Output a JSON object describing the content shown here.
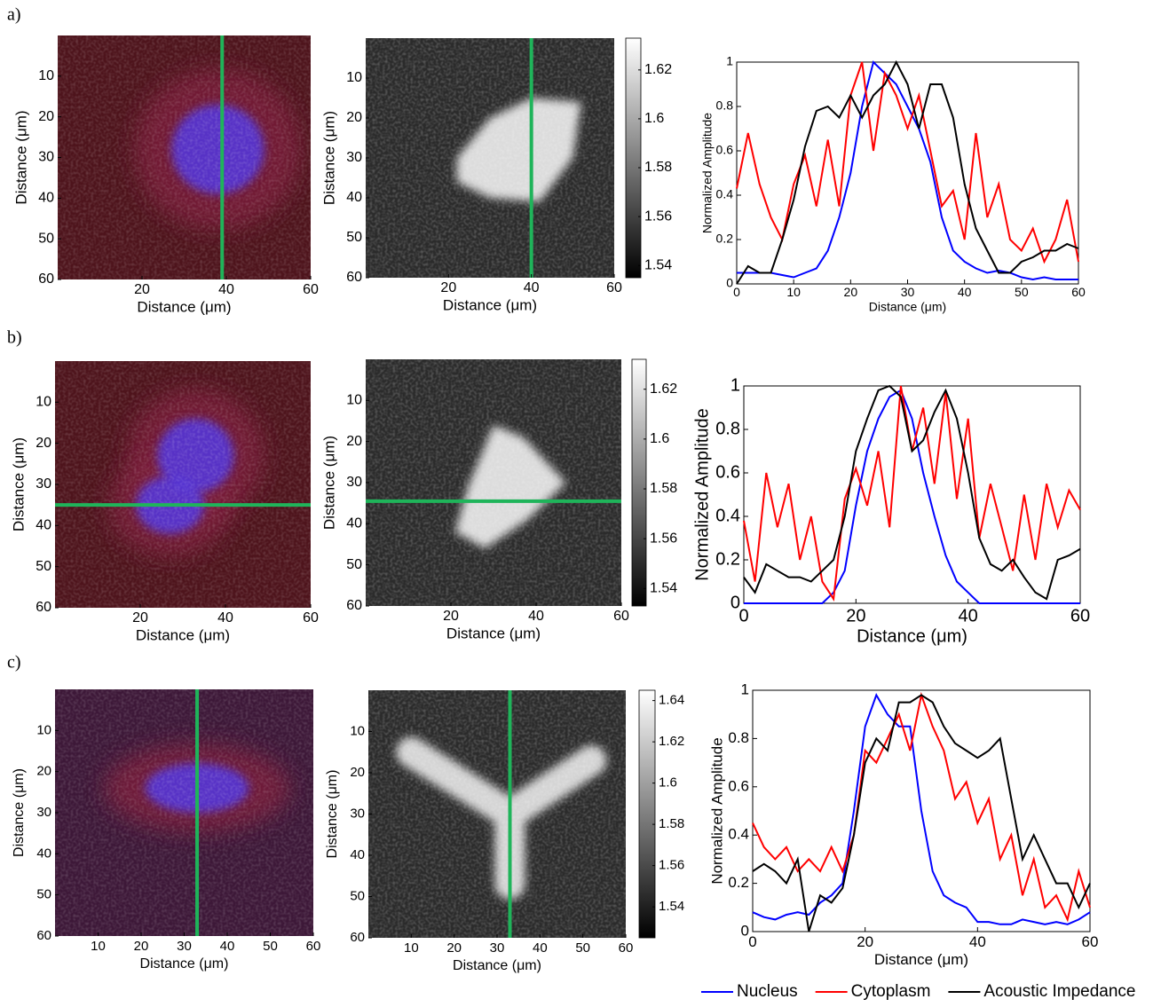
{
  "panel_labels": [
    "a)",
    "b)",
    "c)"
  ],
  "chart_data": [
    {
      "type": "image",
      "colormap": "fluorescence",
      "xlabel": "Distance (μm)",
      "ylabel": "Distance (μm)",
      "xlim": [
        0,
        60
      ],
      "ylim": [
        0,
        60
      ],
      "xticks": [
        20,
        40,
        60
      ],
      "yticks": [
        10,
        20,
        30,
        40,
        50,
        60
      ],
      "cut": {
        "orientation": "vertical",
        "value": 39,
        "color": "#1fb45a"
      }
    },
    {
      "type": "image",
      "colormap": "gray",
      "xlabel": "Distance (μm)",
      "ylabel": "Distance (μm)",
      "xlim": [
        0,
        60
      ],
      "ylim": [
        0,
        60
      ],
      "xticks": [
        20,
        40,
        60
      ],
      "yticks": [
        10,
        20,
        30,
        40,
        50,
        60
      ],
      "cut": {
        "orientation": "vertical",
        "value": 40,
        "color": "#1fb45a"
      },
      "clim": [
        1.535,
        1.633
      ],
      "cticks": [
        1.54,
        1.56,
        1.58,
        1.6,
        1.62
      ]
    },
    {
      "type": "line",
      "xlabel": "Distance (μm)",
      "ylabel": "Normalized Amplitude",
      "xlim": [
        0,
        60
      ],
      "ylim": [
        0,
        1
      ],
      "xticks": [
        0,
        10,
        20,
        30,
        40,
        50,
        60
      ],
      "yticks": [
        0,
        0.2,
        0.4,
        0.6,
        0.8,
        1
      ],
      "x": [
        0,
        2,
        4,
        6,
        8,
        10,
        12,
        14,
        16,
        18,
        20,
        22,
        24,
        26,
        28,
        30,
        32,
        34,
        36,
        38,
        40,
        42,
        44,
        46,
        48,
        50,
        52,
        54,
        56,
        58,
        60
      ],
      "series": [
        {
          "name": "Nucleus",
          "color": "#0000ff",
          "values": [
            0.05,
            0.05,
            0.05,
            0.05,
            0.04,
            0.03,
            0.05,
            0.07,
            0.15,
            0.3,
            0.5,
            0.8,
            1.0,
            0.95,
            0.9,
            0.8,
            0.7,
            0.55,
            0.3,
            0.15,
            0.1,
            0.07,
            0.05,
            0.06,
            0.05,
            0.03,
            0.02,
            0.03,
            0.02,
            0.02,
            0.02
          ]
        },
        {
          "name": "Cytoplasm",
          "color": "#ff0000",
          "values": [
            0.43,
            0.68,
            0.45,
            0.3,
            0.2,
            0.45,
            0.58,
            0.35,
            0.65,
            0.35,
            0.85,
            1.0,
            0.6,
            0.95,
            0.85,
            0.7,
            0.85,
            0.6,
            0.35,
            0.42,
            0.2,
            0.68,
            0.3,
            0.45,
            0.2,
            0.15,
            0.25,
            0.1,
            0.2,
            0.38,
            0.1
          ]
        },
        {
          "name": "Acoustic Impedance",
          "color": "#000000",
          "values": [
            0.0,
            0.08,
            0.05,
            0.05,
            0.2,
            0.38,
            0.62,
            0.78,
            0.8,
            0.75,
            0.85,
            0.75,
            0.85,
            0.9,
            1.0,
            0.9,
            0.7,
            0.9,
            0.9,
            0.75,
            0.45,
            0.25,
            0.15,
            0.05,
            0.05,
            0.1,
            0.12,
            0.15,
            0.15,
            0.18,
            0.16
          ]
        }
      ]
    },
    {
      "type": "image",
      "colormap": "fluorescence",
      "xlabel": "Distance (μm)",
      "ylabel": "Distance (μm)",
      "xlim": [
        0,
        60
      ],
      "ylim": [
        0,
        60
      ],
      "xticks": [
        20,
        40,
        60
      ],
      "yticks": [
        10,
        20,
        30,
        40,
        50,
        60
      ],
      "cut": {
        "orientation": "horizontal",
        "value": 35,
        "color": "#1fb45a"
      }
    },
    {
      "type": "image",
      "colormap": "gray",
      "xlabel": "Distance (μm)",
      "ylabel": "Distance (μm)",
      "xlim": [
        0,
        60
      ],
      "ylim": [
        0,
        60
      ],
      "xticks": [
        20,
        40,
        60
      ],
      "yticks": [
        10,
        20,
        30,
        40,
        50,
        60
      ],
      "cut": {
        "orientation": "horizontal",
        "value": 34.5,
        "color": "#1fb45a"
      },
      "clim": [
        1.533,
        1.632
      ],
      "cticks": [
        1.54,
        1.56,
        1.58,
        1.6,
        1.62
      ]
    },
    {
      "type": "line",
      "xlabel": "Distance (μm)",
      "ylabel": "Normalized Amplitude",
      "xlim": [
        0,
        60
      ],
      "ylim": [
        0,
        1
      ],
      "xticks": [
        0,
        20,
        40,
        60
      ],
      "yticks": [
        0,
        0.2,
        0.4,
        0.6,
        0.8,
        1
      ],
      "x": [
        0,
        2,
        4,
        6,
        8,
        10,
        12,
        14,
        16,
        18,
        20,
        22,
        24,
        26,
        28,
        30,
        32,
        34,
        36,
        38,
        40,
        42,
        44,
        46,
        48,
        50,
        52,
        54,
        56,
        58,
        60
      ],
      "series": [
        {
          "name": "Nucleus",
          "color": "#0000ff",
          "values": [
            0,
            0,
            0,
            0,
            0,
            0,
            0,
            0,
            0.05,
            0.15,
            0.45,
            0.7,
            0.85,
            0.95,
            0.98,
            0.85,
            0.6,
            0.4,
            0.22,
            0.1,
            0.05,
            0,
            0,
            0,
            0,
            0,
            0,
            0,
            0,
            0,
            0
          ]
        },
        {
          "name": "Cytoplasm",
          "color": "#ff0000",
          "values": [
            0.38,
            0.1,
            0.6,
            0.35,
            0.55,
            0.2,
            0.4,
            0.1,
            0.02,
            0.48,
            0.62,
            0.45,
            0.7,
            0.35,
            1.0,
            0.7,
            0.9,
            0.55,
            0.97,
            0.48,
            0.85,
            0.3,
            0.55,
            0.35,
            0.15,
            0.5,
            0.2,
            0.55,
            0.35,
            0.52,
            0.43
          ]
        },
        {
          "name": "Acoustic Impedance",
          "color": "#000000",
          "values": [
            0.12,
            0.05,
            0.18,
            0.15,
            0.12,
            0.12,
            0.1,
            0.15,
            0.2,
            0.4,
            0.7,
            0.85,
            0.98,
            1.0,
            0.95,
            0.7,
            0.75,
            0.88,
            0.98,
            0.85,
            0.6,
            0.3,
            0.18,
            0.15,
            0.2,
            0.12,
            0.05,
            0.02,
            0.2,
            0.22,
            0.25
          ]
        }
      ]
    },
    {
      "type": "image",
      "colormap": "fluorescence",
      "xlabel": "Distance (μm)",
      "ylabel": "Distance (μm)",
      "xlim": [
        0,
        60
      ],
      "ylim": [
        0,
        60
      ],
      "xticks": [
        10,
        20,
        30,
        40,
        50,
        60
      ],
      "yticks": [
        10,
        20,
        30,
        40,
        50,
        60
      ],
      "cut": {
        "orientation": "vertical",
        "value": 33,
        "color": "#1fb45a"
      }
    },
    {
      "type": "image",
      "colormap": "gray",
      "xlabel": "Distance (μm)",
      "ylabel": "Distance (μm)",
      "xlim": [
        0,
        60
      ],
      "ylim": [
        0,
        60
      ],
      "xticks": [
        10,
        20,
        30,
        40,
        50,
        60
      ],
      "yticks": [
        10,
        20,
        30,
        40,
        50,
        60
      ],
      "cut": {
        "orientation": "vertical",
        "value": 33,
        "color": "#1fb45a"
      },
      "clim": [
        1.525,
        1.645
      ],
      "cticks": [
        1.54,
        1.56,
        1.58,
        1.6,
        1.62,
        1.64
      ]
    },
    {
      "type": "line",
      "xlabel": "Distance (μm)",
      "ylabel": "Normalized Amplitude",
      "xlim": [
        0,
        60
      ],
      "ylim": [
        0,
        1
      ],
      "xticks": [
        0,
        20,
        40,
        60
      ],
      "yticks": [
        0,
        0.2,
        0.4,
        0.6,
        0.8,
        1
      ],
      "x": [
        0,
        2,
        4,
        6,
        8,
        10,
        12,
        14,
        16,
        18,
        20,
        22,
        24,
        26,
        28,
        30,
        32,
        34,
        36,
        38,
        40,
        42,
        44,
        46,
        48,
        50,
        52,
        54,
        56,
        58,
        60
      ],
      "series": [
        {
          "name": "Nucleus",
          "color": "#0000ff",
          "values": [
            0.08,
            0.06,
            0.05,
            0.07,
            0.08,
            0.07,
            0.12,
            0.15,
            0.2,
            0.5,
            0.85,
            0.98,
            0.9,
            0.85,
            0.85,
            0.5,
            0.25,
            0.15,
            0.12,
            0.1,
            0.04,
            0.04,
            0.03,
            0.03,
            0.05,
            0.04,
            0.03,
            0.04,
            0.03,
            0.05,
            0.08
          ]
        },
        {
          "name": "Cytoplasm",
          "color": "#ff0000",
          "values": [
            0.45,
            0.35,
            0.3,
            0.35,
            0.25,
            0.3,
            0.25,
            0.35,
            0.25,
            0.4,
            0.75,
            0.7,
            0.8,
            0.9,
            0.75,
            0.98,
            0.85,
            0.75,
            0.55,
            0.62,
            0.45,
            0.55,
            0.3,
            0.4,
            0.15,
            0.3,
            0.1,
            0.15,
            0.05,
            0.25,
            0.1
          ]
        },
        {
          "name": "Acoustic Impedance",
          "color": "#000000",
          "values": [
            0.25,
            0.28,
            0.25,
            0.2,
            0.3,
            0.0,
            0.15,
            0.12,
            0.18,
            0.4,
            0.7,
            0.8,
            0.75,
            0.95,
            0.95,
            0.98,
            0.95,
            0.85,
            0.78,
            0.75,
            0.72,
            0.75,
            0.8,
            0.55,
            0.3,
            0.4,
            0.3,
            0.2,
            0.2,
            0.1,
            0.2
          ]
        }
      ]
    }
  ]
}
